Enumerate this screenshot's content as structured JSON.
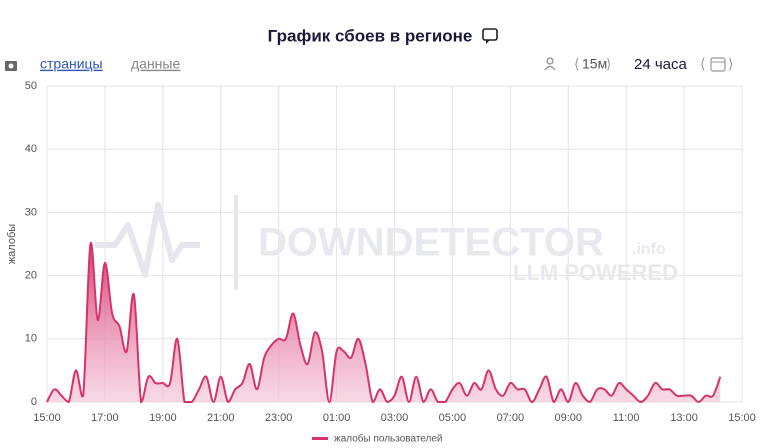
{
  "ui": {
    "tab_pages": "страницы",
    "tab_data": "данные",
    "interval": "15м",
    "range": "24 часа",
    "watermark": "DOWNDETECTOR",
    "watermark_suffix": ".info",
    "watermark_sub": "LLM POWERED"
  },
  "chart_data": {
    "type": "area",
    "title": "График сбоев в регионе",
    "y_label": "жалобы",
    "x": [
      0,
      0.25,
      0.5,
      0.75,
      1,
      1.25,
      1.5,
      1.75,
      2,
      2.25,
      2.5,
      2.75,
      3,
      3.25,
      3.5,
      3.75,
      4,
      4.25,
      4.5,
      4.75,
      5,
      5.25,
      5.5,
      5.75,
      6,
      6.25,
      6.5,
      6.75,
      7,
      7.25,
      7.5,
      7.75,
      8,
      8.25,
      8.5,
      8.75,
      9,
      9.25,
      9.5,
      9.75,
      10,
      10.25,
      10.5,
      10.75,
      11,
      11.25,
      11.5,
      11.75,
      12,
      12.25,
      12.5,
      12.75,
      13,
      13.25,
      13.5,
      13.75,
      14,
      14.25,
      14.5,
      14.75,
      15,
      15.25,
      15.5,
      15.75,
      16,
      16.25,
      16.5,
      16.75,
      17,
      17.25,
      17.5,
      17.75,
      18,
      18.25,
      18.5,
      18.75,
      19,
      19.25,
      19.5,
      19.75,
      20,
      20.25,
      20.5,
      20.75,
      21,
      21.25,
      21.5,
      21.75,
      22,
      22.25,
      22.5,
      22.75,
      23,
      23.25
    ],
    "series": [
      {
        "name": "жалобы пользователей",
        "color": "#d6336c",
        "values": [
          0,
          2,
          1,
          0,
          5,
          1,
          25,
          13,
          22,
          14,
          12,
          8,
          17,
          0,
          4,
          3,
          3,
          3,
          10,
          0,
          0,
          2,
          4,
          0,
          4,
          0,
          2,
          3,
          6,
          2,
          7,
          9,
          10,
          10,
          14,
          9,
          6,
          11,
          8,
          0,
          8,
          8,
          7,
          10,
          6,
          0,
          2,
          0,
          1,
          4,
          0,
          4,
          0,
          2,
          0,
          0,
          2,
          3,
          1,
          3,
          2,
          5,
          2,
          1,
          3,
          2,
          2,
          0,
          2,
          4,
          0,
          2,
          0,
          3,
          1,
          0,
          2,
          2,
          1,
          3,
          2,
          1,
          0,
          1,
          3,
          2,
          2,
          1,
          1,
          1,
          0,
          1,
          1,
          4
        ]
      }
    ],
    "xlim": [
      0,
      24
    ],
    "xticks": [
      {
        "value": 0,
        "label": "15:00"
      },
      {
        "value": 2,
        "label": "17:00"
      },
      {
        "value": 4,
        "label": "19:00"
      },
      {
        "value": 6,
        "label": "21:00"
      },
      {
        "value": 8,
        "label": "23:00"
      },
      {
        "value": 10,
        "label": "01:00"
      },
      {
        "value": 12,
        "label": "03:00"
      },
      {
        "value": 14,
        "label": "05:00"
      },
      {
        "value": 16,
        "label": "07:00"
      },
      {
        "value": 18,
        "label": "09:00"
      },
      {
        "value": 20,
        "label": "11:00"
      },
      {
        "value": 22,
        "label": "13:00"
      },
      {
        "value": 24,
        "label": "15:00"
      }
    ],
    "ylim": [
      0,
      50
    ],
    "yticks": [
      0,
      10,
      20,
      30,
      40,
      50
    ],
    "grid": true
  }
}
